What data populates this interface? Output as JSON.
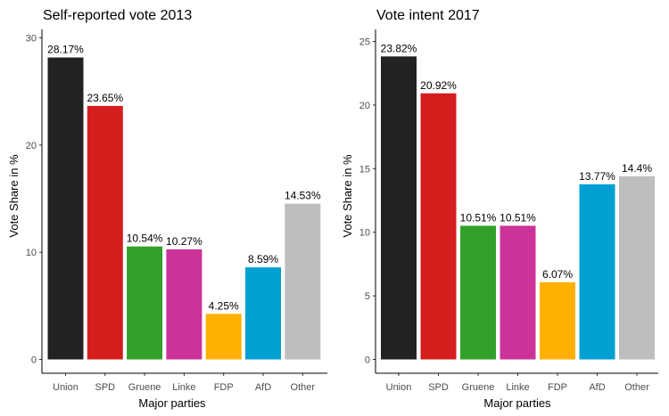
{
  "chart_data": [
    {
      "type": "bar",
      "title": "Self-reported vote 2013",
      "xlabel": "Major parties",
      "ylabel": "Vote Share in %",
      "categories": [
        "Union",
        "SPD",
        "Gruene",
        "Linke",
        "FDP",
        "AfD",
        "Other"
      ],
      "values": [
        28.17,
        23.65,
        10.54,
        10.27,
        4.25,
        8.59,
        14.53
      ],
      "value_labels": [
        "28.17%",
        "23.65%",
        "10.54%",
        "10.27%",
        "4.25%",
        "8.59%",
        "14.53%"
      ],
      "colors": [
        "#222222",
        "#d41e1e",
        "#33a02c",
        "#cc3399",
        "#ffb000",
        "#00a0d2",
        "#bebebe"
      ],
      "yticks": [
        0,
        10,
        20,
        30
      ],
      "ylim": [
        0,
        30
      ],
      "grid": false,
      "legend": "none"
    },
    {
      "type": "bar",
      "title": "Vote intent 2017",
      "xlabel": "Major parties",
      "ylabel": "Vote Share in %",
      "categories": [
        "Union",
        "SPD",
        "Gruene",
        "Linke",
        "FDP",
        "AfD",
        "Other"
      ],
      "values": [
        23.82,
        20.92,
        10.51,
        10.51,
        6.07,
        13.77,
        14.4
      ],
      "value_labels": [
        "23.82%",
        "20.92%",
        "10.51%",
        "10.51%",
        "6.07%",
        "13.77%",
        "14.4%"
      ],
      "colors": [
        "#222222",
        "#d41e1e",
        "#33a02c",
        "#cc3399",
        "#ffb000",
        "#00a0d2",
        "#bebebe"
      ],
      "yticks": [
        0,
        5,
        10,
        15,
        20,
        25
      ],
      "ylim": [
        0,
        25
      ],
      "grid": false,
      "legend": "none"
    }
  ]
}
